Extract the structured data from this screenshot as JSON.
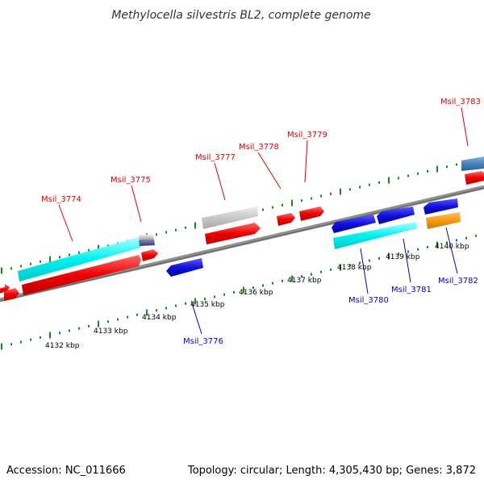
{
  "title": "Methylocella silvestris BL2, complete genome",
  "footer": {
    "accession": "Accession: NC_011666",
    "summary": "Topology: circular; Length: 4,305,430 bp; Genes: 3,872"
  },
  "colors": {
    "plus_label": "#dd0000",
    "minus_label": "#0000cc",
    "tick": "#1a8a1a",
    "backbone": "#808080"
  },
  "kbp_labels": [
    "4132 kbp",
    "4133 kbp",
    "4134 kbp",
    "4135 kbp",
    "4136 kbp",
    "4137 kbp",
    "4138 kbp",
    "4139 kbp",
    "4140 kbp"
  ],
  "gene_labels": {
    "msil_3774": "Msil_3774",
    "msil_3775": "Msil_3775",
    "msil_3777": "Msil_3777",
    "msil_3778": "Msil_3778",
    "msil_3779": "Msil_3779",
    "msil_3783": "Msil_3783",
    "msil_3776": "Msil_3776",
    "msil_3780": "Msil_3780",
    "msil_3781": "Msil_3781",
    "msil_3782": "Msil_3782"
  }
}
